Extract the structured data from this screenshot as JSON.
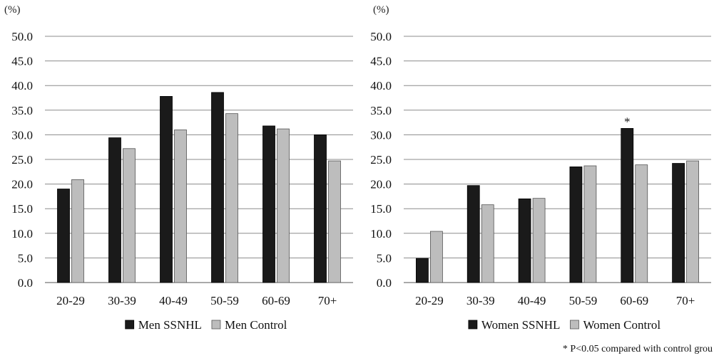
{
  "footnote": "* P<0.05 compared with control grou",
  "colors": {
    "ssnhl": "#1a1a1a",
    "control": "#bdbdbd",
    "grid": "#8c8c8c"
  },
  "chart_data": [
    {
      "type": "bar",
      "title": "",
      "unit_label": "(%)",
      "xlabel": "",
      "ylabel": "",
      "ylim": [
        0,
        50
      ],
      "y_ticks": [
        "0.0",
        "5.0",
        "10.0",
        "15.0",
        "20.0",
        "25.0",
        "30.0",
        "35.0",
        "40.0",
        "45.0",
        "50.0"
      ],
      "grid": true,
      "legend_position": "bottom",
      "categories": [
        "20-29",
        "30-39",
        "40-49",
        "50-59",
        "60-69",
        "70+"
      ],
      "series": [
        {
          "name": "Men SSNHL",
          "color": "#1a1a1a",
          "values": [
            19.0,
            29.4,
            37.8,
            38.6,
            31.8,
            30.0
          ]
        },
        {
          "name": "Men Control",
          "color": "#bdbdbd",
          "values": [
            20.9,
            27.2,
            31.0,
            34.3,
            31.2,
            24.7
          ]
        }
      ],
      "annotations": []
    },
    {
      "type": "bar",
      "title": "",
      "unit_label": "(%)",
      "xlabel": "",
      "ylabel": "",
      "ylim": [
        0,
        50
      ],
      "y_ticks": [
        "0.0",
        "5.0",
        "10.0",
        "15.0",
        "20.0",
        "25.0",
        "30.0",
        "35.0",
        "40.0",
        "45.0",
        "50.0"
      ],
      "grid": true,
      "legend_position": "bottom",
      "categories": [
        "20-29",
        "30-39",
        "40-49",
        "50-59",
        "60-69",
        "70+"
      ],
      "series": [
        {
          "name": "Women SSNHL",
          "color": "#1a1a1a",
          "values": [
            4.9,
            19.7,
            17.0,
            23.5,
            31.3,
            24.2
          ]
        },
        {
          "name": "Women Control",
          "color": "#bdbdbd",
          "values": [
            10.4,
            15.8,
            17.1,
            23.7,
            23.9,
            24.7
          ]
        }
      ],
      "annotations": [
        {
          "category": "60-69",
          "series": 0,
          "text": "*"
        }
      ]
    }
  ]
}
